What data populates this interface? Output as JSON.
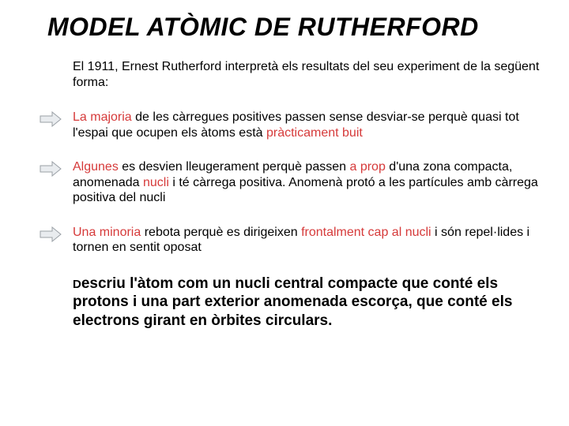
{
  "title": "MODEL ATÒMIC DE RUTHERFORD",
  "intro": "El 1911, Ernest Rutherford interpretà els resultats del seu experiment de la següent forma:",
  "bullets": [
    {
      "parts": [
        {
          "t": "La majoria",
          "hl": true
        },
        {
          "t": " de les càrregues positives passen sense desviar-se perquè quasi tot l'espai que ocupen els àtoms està ",
          "hl": false
        },
        {
          "t": "pràcticament buit",
          "hl": true
        }
      ]
    },
    {
      "parts": [
        {
          "t": "Algunes",
          "hl": true
        },
        {
          "t": " es desvien lleugerament perquè passen ",
          "hl": false
        },
        {
          "t": "a prop",
          "hl": true
        },
        {
          "t": " d'una zona compacta, anomenada ",
          "hl": false
        },
        {
          "t": "nucli",
          "hl": true
        },
        {
          "t": " i té càrrega positiva. Anomenà protó a les partícules amb càrrega positiva del nucli",
          "hl": false
        }
      ]
    },
    {
      "parts": [
        {
          "t": "Una minoria",
          "hl": true
        },
        {
          "t": " rebota perquè es dirigeixen ",
          "hl": false
        },
        {
          "t": "frontalment cap al nucli",
          "hl": true
        },
        {
          "t": " i són repel·lides i tornen en sentit oposat",
          "hl": false
        }
      ]
    }
  ],
  "conclusion_prefix": "D",
  "conclusion_rest": "escriu l'àtom com un nucli central compacte que conté els protons i una part exterior anomenada escorça, que conté els electrons girant en òrbites circulars.",
  "arrow": {
    "fill": "#e9ecef",
    "stroke": "#9aa0a6",
    "stroke_width": 1
  },
  "colors": {
    "highlight": "#d63a3a",
    "text": "#000000",
    "background": "#ffffff"
  }
}
